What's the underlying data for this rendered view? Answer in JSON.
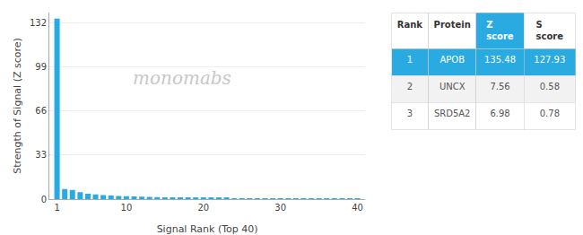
{
  "chart_data": [
    {
      "type": "bar",
      "x": [
        1,
        2,
        3,
        4,
        5,
        6,
        7,
        8,
        9,
        10,
        11,
        12,
        13,
        14,
        15,
        16,
        17,
        18,
        19,
        20,
        21,
        22,
        23,
        24,
        25,
        26,
        27,
        28,
        29,
        30,
        31,
        32,
        33,
        34,
        35,
        36,
        37,
        38,
        39,
        40
      ],
      "values": [
        135.48,
        7.56,
        6.98,
        5.2,
        4.1,
        3.5,
        3.0,
        2.7,
        2.4,
        2.2,
        2.0,
        1.8,
        1.65,
        1.5,
        1.38,
        1.25,
        1.15,
        1.05,
        0.97,
        0.9,
        0.83,
        0.77,
        0.72,
        0.67,
        0.63,
        0.59,
        0.55,
        0.52,
        0.49,
        0.46,
        0.43,
        0.41,
        0.38,
        0.36,
        0.34,
        0.32,
        0.3,
        0.28,
        0.26,
        0.24
      ],
      "color": "#29ABE2",
      "x_label": "Signal Rank (Top 40)",
      "y_label": "Strength of Signal (Z score)",
      "xlim": [
        0,
        41
      ],
      "xticks": [
        1,
        10,
        20,
        30,
        40
      ],
      "ylim": [
        0,
        140
      ],
      "yticks": [
        0,
        33,
        66,
        99,
        132
      ],
      "grid": true,
      "annotations": [
        "monomabs"
      ]
    },
    {
      "type": "table",
      "header": [
        "Rank",
        "Protein",
        "Z score",
        "S score"
      ],
      "rows": [
        [
          "1",
          "APOB",
          "135.48",
          "127.93"
        ],
        [
          "2",
          "UNCX",
          "7.56",
          "0.58"
        ],
        [
          "3",
          "SRD5A2",
          "6.98",
          "0.78"
        ]
      ],
      "color": "#29ABE2"
    }
  ]
}
